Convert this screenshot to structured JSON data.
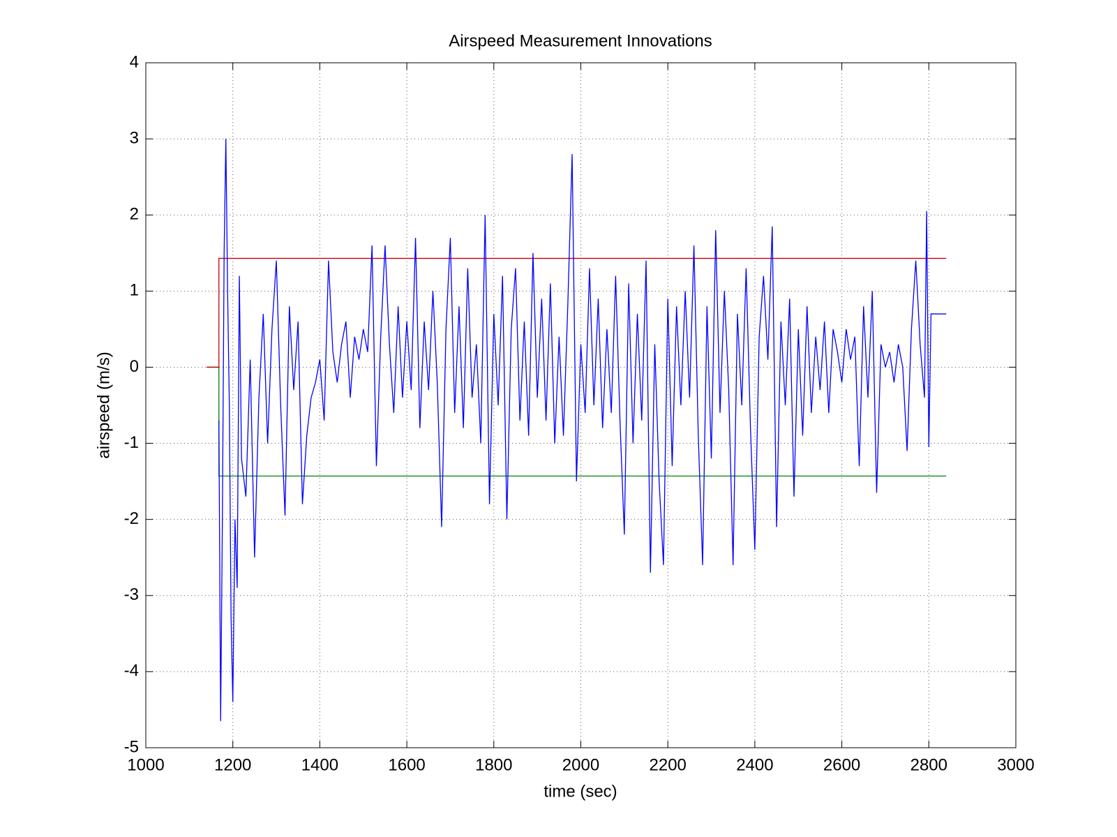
{
  "chart_data": {
    "type": "line",
    "title": "Airspeed Measurement Innovations",
    "xlabel": "time (sec)",
    "ylabel": "airspeed (m/s)",
    "xlim": [
      1000,
      3000
    ],
    "xticks": [
      1000,
      1200,
      1400,
      1600,
      1800,
      2000,
      2200,
      2400,
      2600,
      2800,
      3000
    ],
    "ylim": [
      -5,
      4
    ],
    "yticks": [
      -5,
      -4,
      -3,
      -2,
      -1,
      0,
      1,
      2,
      3,
      4
    ],
    "grid": true,
    "series": [
      {
        "color": "#0000ff",
        "x": [
          1168,
          1172,
          1176,
          1180,
          1184,
          1188,
          1192,
          1196,
          1200,
          1205,
          1210,
          1215,
          1220,
          1230,
          1240,
          1250,
          1260,
          1270,
          1280,
          1290,
          1300,
          1310,
          1320,
          1330,
          1340,
          1350,
          1360,
          1370,
          1380,
          1390,
          1400,
          1410,
          1420,
          1430,
          1440,
          1450,
          1460,
          1470,
          1480,
          1490,
          1500,
          1510,
          1520,
          1530,
          1540,
          1550,
          1560,
          1570,
          1580,
          1590,
          1600,
          1610,
          1620,
          1630,
          1640,
          1650,
          1660,
          1670,
          1680,
          1690,
          1700,
          1710,
          1720,
          1730,
          1740,
          1750,
          1760,
          1770,
          1780,
          1790,
          1800,
          1810,
          1820,
          1830,
          1840,
          1850,
          1860,
          1870,
          1880,
          1890,
          1900,
          1910,
          1920,
          1930,
          1940,
          1950,
          1960,
          1970,
          1980,
          1990,
          2000,
          2010,
          2020,
          2030,
          2040,
          2050,
          2060,
          2070,
          2080,
          2090,
          2100,
          2110,
          2120,
          2130,
          2140,
          2150,
          2160,
          2170,
          2180,
          2190,
          2200,
          2210,
          2220,
          2230,
          2240,
          2250,
          2260,
          2270,
          2280,
          2290,
          2300,
          2310,
          2320,
          2330,
          2340,
          2350,
          2360,
          2370,
          2380,
          2390,
          2400,
          2410,
          2420,
          2430,
          2440,
          2450,
          2460,
          2470,
          2480,
          2490,
          2500,
          2510,
          2520,
          2530,
          2540,
          2550,
          2560,
          2570,
          2580,
          2590,
          2600,
          2610,
          2620,
          2630,
          2640,
          2650,
          2660,
          2670,
          2680,
          2690,
          2700,
          2710,
          2720,
          2730,
          2740,
          2750,
          2760,
          2770,
          2780,
          2790,
          2795,
          2800,
          2805,
          2840
        ],
        "values": [
          -0.7,
          -4.65,
          -2.0,
          1.5,
          3.0,
          1.0,
          -0.5,
          -3.3,
          -4.4,
          -2.0,
          -2.9,
          1.2,
          -1.2,
          -1.7,
          0.1,
          -2.5,
          -0.4,
          0.7,
          -1.0,
          0.5,
          1.4,
          -0.5,
          -1.95,
          0.8,
          -0.3,
          0.6,
          -1.8,
          -0.9,
          -0.4,
          -0.2,
          0.1,
          -0.7,
          1.4,
          0.2,
          -0.2,
          0.3,
          0.6,
          -0.4,
          0.4,
          0.1,
          0.5,
          0.2,
          1.6,
          -1.3,
          0.4,
          1.6,
          0.3,
          -0.6,
          0.8,
          -0.4,
          0.6,
          -0.3,
          1.7,
          -0.8,
          0.6,
          -0.3,
          1.0,
          -0.2,
          -2.1,
          0.5,
          1.7,
          -0.6,
          0.8,
          -0.8,
          1.3,
          -0.4,
          0.3,
          -1.0,
          2.0,
          -1.8,
          0.7,
          -0.5,
          1.2,
          -2.0,
          0.5,
          1.3,
          -0.7,
          0.6,
          -0.9,
          1.5,
          -0.4,
          0.9,
          -0.7,
          1.1,
          -1.0,
          0.4,
          -0.9,
          0.8,
          2.8,
          -1.5,
          0.3,
          -0.6,
          1.3,
          -0.5,
          0.9,
          -0.8,
          0.5,
          -0.6,
          1.2,
          -0.7,
          -2.2,
          1.1,
          -1.0,
          0.7,
          -0.7,
          1.4,
          -2.7,
          0.3,
          -1.5,
          -2.6,
          0.9,
          -1.3,
          0.8,
          -0.5,
          1.0,
          -0.4,
          1.6,
          -0.9,
          -2.6,
          0.8,
          -1.2,
          1.8,
          -0.6,
          1.0,
          -0.3,
          -2.6,
          0.7,
          -0.5,
          1.3,
          -0.8,
          -2.4,
          0.4,
          1.2,
          0.1,
          1.85,
          -2.1,
          0.6,
          -0.5,
          0.9,
          -1.7,
          0.5,
          -0.9,
          0.8,
          -0.6,
          0.4,
          -0.3,
          0.6,
          -0.6,
          0.5,
          0.2,
          -0.2,
          0.5,
          0.1,
          0.4,
          -1.3,
          0.8,
          -0.4,
          1.0,
          -1.65,
          0.3,
          0.0,
          0.2,
          -0.2,
          0.3,
          0.0,
          -1.1,
          0.5,
          1.4,
          0.3,
          -0.4,
          2.05,
          -1.05,
          0.7,
          0.7
        ]
      },
      {
        "color": "#cc0000",
        "x": [
          1140,
          1168,
          1168,
          2840
        ],
        "values": [
          0,
          0,
          1.43,
          1.43
        ]
      },
      {
        "color": "#007f00",
        "x": [
          1140,
          1168,
          1168,
          2840
        ],
        "values": [
          0,
          0,
          -1.43,
          -1.43
        ]
      }
    ]
  }
}
